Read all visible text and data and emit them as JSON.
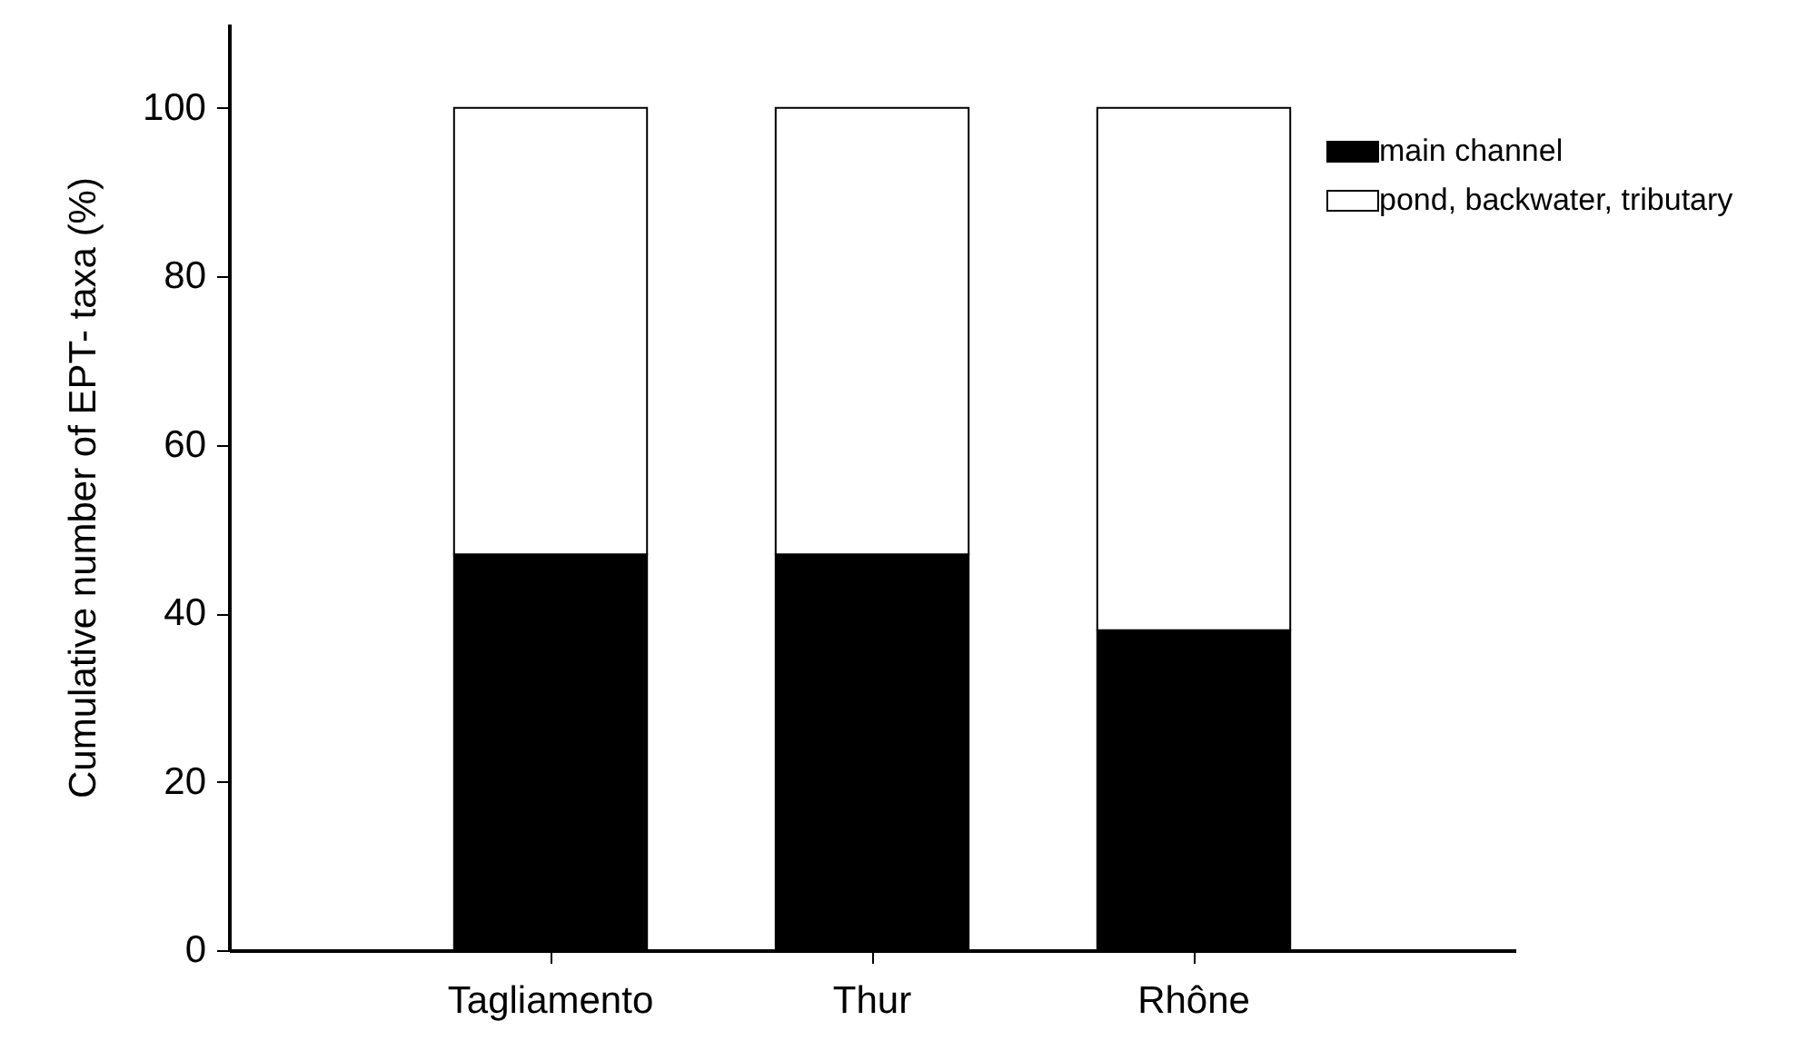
{
  "chart_data": {
    "type": "bar",
    "ylabel": "Cumulative number of EPT- taxa (%)",
    "categories": [
      "Tagliamento",
      "Thur",
      "Rhône"
    ],
    "stacked": true,
    "series": [
      {
        "name": "main channel",
        "color": "#000000",
        "values": [
          47,
          47,
          38
        ]
      },
      {
        "name": "pond, backwater, tributary",
        "color": "#ffffff",
        "values": [
          53,
          53,
          62
        ]
      }
    ],
    "ylim": [
      0,
      110
    ],
    "yticks": [
      0,
      20,
      40,
      60,
      80,
      100
    ],
    "grid": false,
    "legend": "top right"
  }
}
